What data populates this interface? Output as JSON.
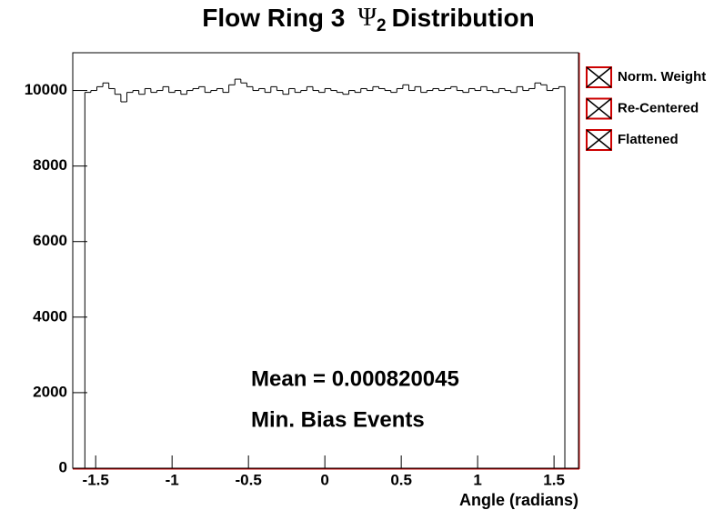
{
  "chart_data": {
    "type": "histogram",
    "title": [
      "Flow Ring 3",
      "Ψ",
      "2",
      "Distribution"
    ],
    "x_label": "Angle (radians)",
    "annotations": [
      "Mean = 0.000820045",
      "Min. Bias Events"
    ],
    "legend": [
      "Norm. Weight",
      "Re-Centered",
      "Flattened"
    ],
    "color": "#000000",
    "bins": [
      -1.5708,
      -1.5315,
      -1.4923,
      -1.453,
      -1.4137,
      -1.3744,
      -1.3352,
      -1.2959,
      -1.2566,
      -1.2174,
      -1.1781,
      -1.1388,
      -1.0996,
      -1.0603,
      -1.021,
      -0.9817,
      -0.9425,
      -0.9032,
      -0.8639,
      -0.8247,
      -0.7854,
      -0.7461,
      -0.7069,
      -0.6676,
      -0.6283,
      -0.589,
      -0.5498,
      -0.5105,
      -0.4712,
      -0.432,
      -0.3927,
      -0.3534,
      -0.3142,
      -0.2749,
      -0.2356,
      -0.1963,
      -0.1571,
      -0.1178,
      -0.0785,
      -0.0393,
      0,
      0.0393,
      0.0785,
      0.1178,
      0.1571,
      0.1963,
      0.2356,
      0.2749,
      0.3142,
      0.3534,
      0.3927,
      0.432,
      0.4712,
      0.5105,
      0.5498,
      0.589,
      0.6283,
      0.6676,
      0.7069,
      0.7461,
      0.7854,
      0.8247,
      0.8639,
      0.9032,
      0.9425,
      0.9817,
      1.021,
      1.0603,
      1.0996,
      1.1388,
      1.1781,
      1.2174,
      1.2566,
      1.2959,
      1.3352,
      1.3744,
      1.4137,
      1.453,
      1.4923,
      1.5315,
      1.5708
    ],
    "values": [
      9950,
      10000,
      10100,
      10200,
      10050,
      9900,
      9700,
      9950,
      10000,
      9900,
      10050,
      9950,
      10000,
      10100,
      9950,
      10000,
      9900,
      10000,
      10050,
      10100,
      9950,
      10000,
      10050,
      9950,
      10150,
      10300,
      10200,
      10100,
      10000,
      10050,
      9950,
      10100,
      10000,
      9900,
      10050,
      9950,
      10000,
      10100,
      10000,
      9950,
      10050,
      10000,
      9950,
      9900,
      10000,
      9950,
      10050,
      10000,
      10100,
      10050,
      10000,
      9950,
      10050,
      10150,
      10000,
      10100,
      9950,
      10000,
      10050,
      10000,
      10050,
      10100,
      10000,
      9950,
      10050,
      10000,
      10100,
      10000,
      9950,
      10050,
      10000,
      9950,
      10100,
      10000,
      10050,
      10200,
      10150,
      10000,
      10050,
      10100
    ],
    "xlim": [
      -1.65,
      1.66
    ],
    "ylim": [
      0,
      11000
    ],
    "xticks": [
      -1.5,
      -1,
      -0.5,
      0,
      0.5,
      1,
      1.5
    ],
    "yticks": [
      0,
      2000,
      4000,
      6000,
      8000,
      10000
    ]
  }
}
